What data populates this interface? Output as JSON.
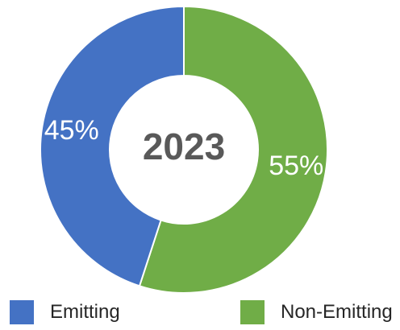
{
  "chart_data": {
    "type": "pie",
    "variant": "donut",
    "center_label": "2023",
    "categories": [
      "Emitting",
      "Non-Emitting"
    ],
    "values": [
      45,
      55
    ],
    "value_labels": [
      "45%",
      "55%"
    ],
    "colors": [
      "#4472C4",
      "#70AD47"
    ],
    "legend": {
      "position": "bottom",
      "entries": [
        "Emitting",
        "Non-Emitting"
      ]
    }
  }
}
